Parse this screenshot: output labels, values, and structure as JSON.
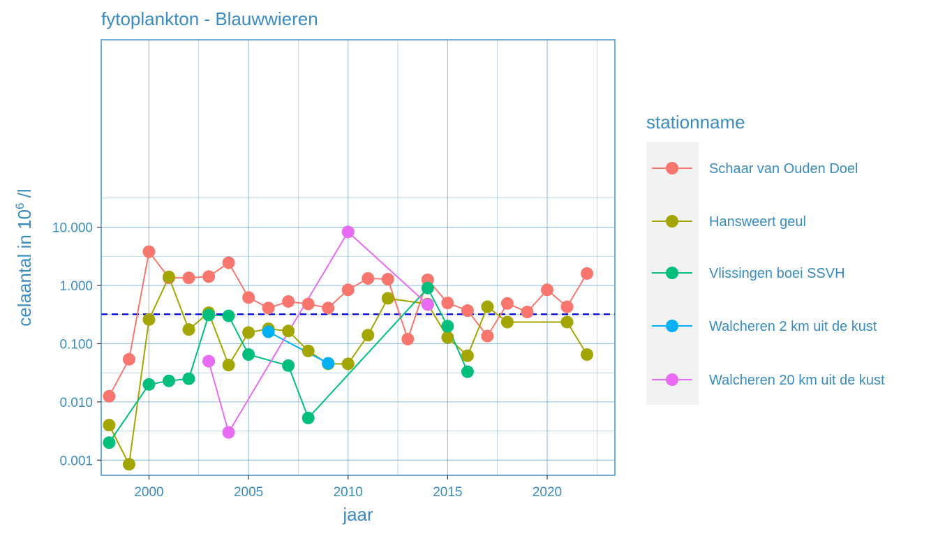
{
  "chart_data": {
    "type": "line",
    "title": "fytoplankton - Blauwwieren",
    "xlabel": "jaar",
    "ylabel_prefix": "celaantal in  10",
    "ylabel_exp": "6",
    "ylabel_suffix": " /l",
    "y_scale": "log10",
    "xlim": [
      1997.6,
      2023.4
    ],
    "ylim": [
      0.00055,
      16500
    ],
    "x_ticks": [
      2000,
      2005,
      2010,
      2015,
      2020
    ],
    "x_tick_labels": [
      "2000",
      "2005",
      "2010",
      "2015",
      "2020"
    ],
    "y_ticks": [
      0.001,
      0.01,
      0.1,
      1,
      10
    ],
    "y_tick_labels": [
      "0.001",
      "0.010",
      "0.100",
      "1.000",
      "10.000"
    ],
    "grid": true,
    "reference_line": {
      "y": 0.32,
      "style": "dashed",
      "color": "#0000dd"
    },
    "legend": {
      "title": "stationname",
      "position": "right"
    },
    "series": [
      {
        "name": "Schaar van Ouden Doel",
        "color": "#F8766D",
        "x": [
          1998,
          1999,
          2000,
          2001,
          2002,
          2003,
          2004,
          2005,
          2006,
          2007,
          2008,
          2009,
          2010,
          2011,
          2012,
          2013,
          2014,
          2015,
          2016,
          2017,
          2018,
          2019,
          2020,
          2021,
          2022
        ],
        "y": [
          0.0125,
          0.054,
          3.8,
          1.35,
          1.35,
          1.42,
          2.45,
          0.62,
          0.41,
          0.53,
          0.48,
          0.41,
          0.84,
          1.32,
          1.28,
          0.12,
          1.25,
          0.5,
          0.37,
          0.135,
          0.49,
          0.35,
          0.84,
          0.43,
          1.6
        ]
      },
      {
        "name": "Hansweert geul",
        "color": "#A3A500",
        "x": [
          1998,
          1999,
          2000,
          2001,
          2002,
          2003,
          2004,
          2005,
          2006,
          2007,
          2008,
          2009,
          2010,
          2011,
          2012,
          2014,
          2015,
          2016,
          2017,
          2018,
          2021,
          2022
        ],
        "y": [
          0.004,
          0.00085,
          0.26,
          1.4,
          0.175,
          0.34,
          0.043,
          0.155,
          0.18,
          0.165,
          0.075,
          0.045,
          0.045,
          0.14,
          0.6,
          0.48,
          0.128,
          0.062,
          0.43,
          0.235,
          0.235,
          0.065
        ]
      },
      {
        "name": "Vlissingen boei SSVH",
        "color": "#00BF7D",
        "x": [
          1998,
          2000,
          2001,
          2002,
          2003,
          2004,
          2005,
          2007,
          2008,
          2014,
          2015,
          2016
        ],
        "y": [
          0.002,
          0.02,
          0.023,
          0.025,
          0.31,
          0.3,
          0.065,
          0.042,
          0.0053,
          0.9,
          0.2,
          0.033
        ]
      },
      {
        "name": "Walcheren 2 km uit de kust",
        "color": "#00B0F6",
        "x": [
          2006,
          2009
        ],
        "y": [
          0.16,
          0.046
        ]
      },
      {
        "name": "Walcheren 20 km uit de kust",
        "color": "#E76BF3",
        "x": [
          2003,
          2004,
          2010,
          2014
        ],
        "y": [
          0.05,
          0.003,
          8.3,
          0.47
        ]
      }
    ]
  },
  "colors": {
    "text": "#3a8cbe",
    "axis": "#3a8cbe",
    "grid": "#3a8cbe",
    "legend_key_bg": "#f2f2f2"
  }
}
